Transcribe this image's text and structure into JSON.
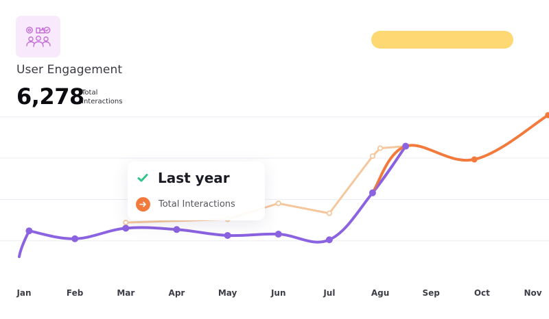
{
  "header": {
    "icon": "user-engagement-icon",
    "title": "User Engagement",
    "total_value": "6,278",
    "total_caption": "Total Interactions",
    "pill_color": "#fdd873"
  },
  "tooltip": {
    "title": "Last year",
    "label": "Total Interactions",
    "check_color": "#2bc48a",
    "dot_color": "#f27a3c"
  },
  "colors": {
    "this_year": "#8b62e0",
    "last_year": "#f6c79c",
    "highlight": "#f27a3c",
    "grid": "#ececf2"
  },
  "chart_data": {
    "type": "line",
    "categories": [
      "Jan",
      "Feb",
      "Mar",
      "Apr",
      "May",
      "Jun",
      "Jul",
      "Agu",
      "Sep",
      "Oct",
      "Nov"
    ],
    "grid": true,
    "series": [
      {
        "name": "",
        "style": "purple",
        "x": [
          0.1,
          1.0,
          2.0,
          3.0,
          4.0,
          5.0,
          6.0,
          6.85,
          7.5,
          8.85,
          10.3
        ],
        "values": [
          1300,
          1060,
          1380,
          1340,
          1160,
          1200,
          1030,
          2450,
          3860,
          3460,
          4800
        ]
      },
      {
        "name": "",
        "style": "peach",
        "x": [
          2.0,
          4.0,
          5.0,
          6.0,
          6.85,
          7.0,
          7.5
        ],
        "values": [
          1550,
          1650,
          2130,
          1830,
          3560,
          3800,
          3860
        ]
      }
    ],
    "ylim": [
      0,
      6000
    ]
  }
}
